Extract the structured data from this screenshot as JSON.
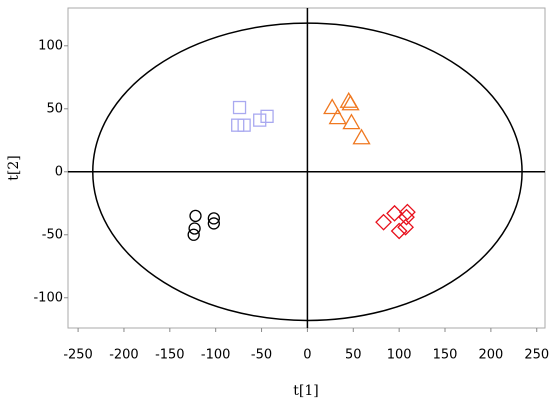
{
  "chart_data": {
    "type": "scatter",
    "xlabel": "t[1]",
    "ylabel": "t[2]",
    "xlim": [
      -261,
      259
    ],
    "ylim": [
      -124,
      130
    ],
    "xticks": [
      -250,
      -200,
      -150,
      -100,
      -50,
      0,
      50,
      100,
      150,
      200,
      250
    ],
    "yticks": [
      -100,
      -50,
      0,
      50,
      100
    ],
    "ellipse": {
      "rx": 234,
      "ry": 118
    },
    "series": [
      {
        "color": "#a9a9f0",
        "marker": "square",
        "x": [
          -74,
          -76,
          -69,
          -52,
          -44
        ],
        "y": [
          51,
          37,
          37,
          41,
          44
        ]
      },
      {
        "color": "#f07820",
        "marker": "triangle",
        "x": [
          27,
          33,
          45,
          47,
          48,
          59
        ],
        "y": [
          51,
          43,
          56,
          54,
          39,
          27
        ]
      },
      {
        "color": "#e8101c",
        "marker": "diamond",
        "x": [
          83,
          95,
          100,
          107,
          108,
          109
        ],
        "y": [
          -40,
          -33,
          -47,
          -44,
          -36,
          -32
        ]
      },
      {
        "color": "#000000",
        "marker": "circle",
        "x": [
          -122,
          -123,
          -124,
          -102,
          -102
        ],
        "y": [
          -35,
          -45,
          -50,
          -37,
          -41
        ]
      }
    ]
  }
}
